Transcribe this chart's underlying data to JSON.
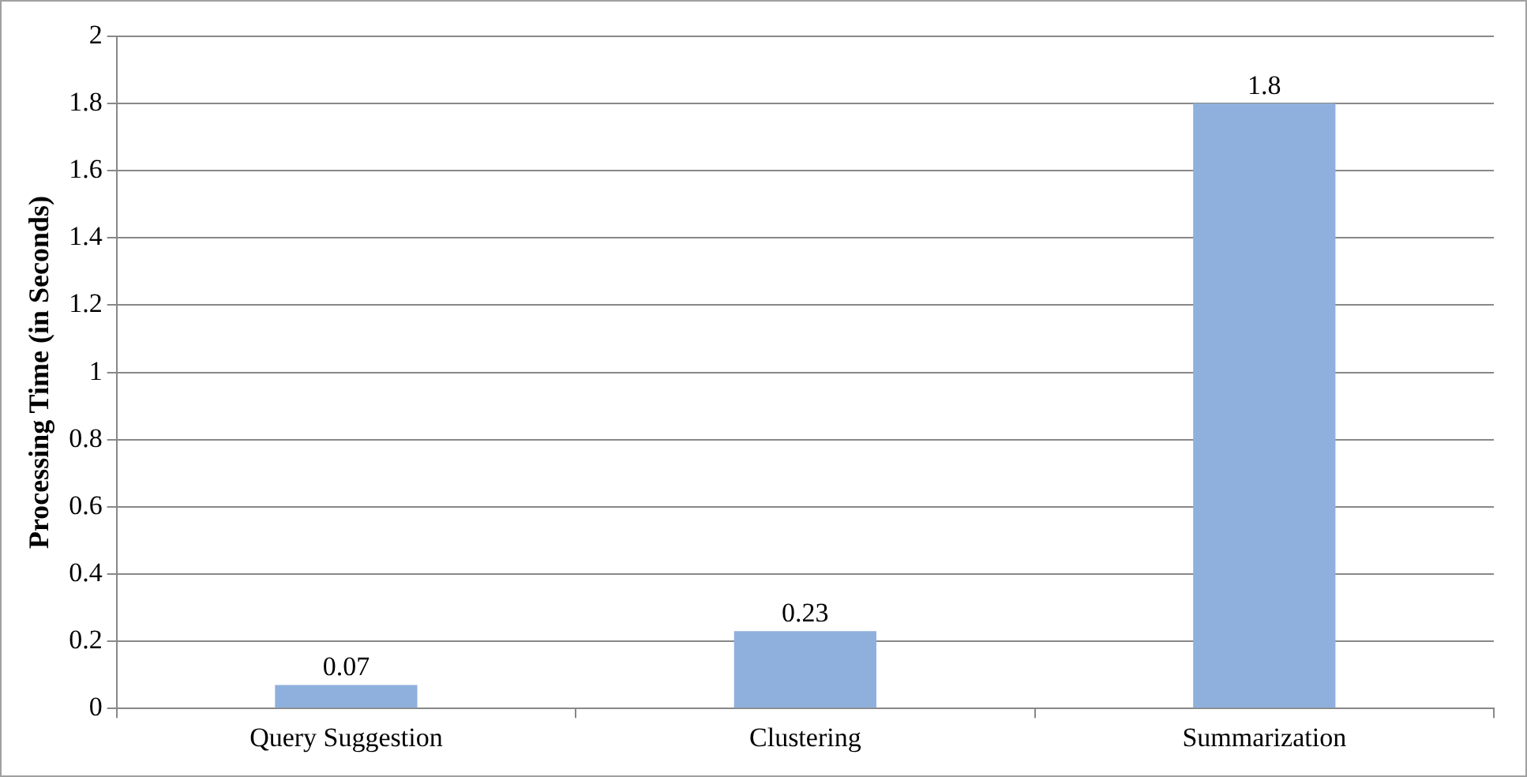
{
  "chart_data": {
    "type": "bar",
    "ylabel": "Processing Time (in Seconds)",
    "categories": [
      "Query Suggestion",
      "Clustering",
      "Summarization"
    ],
    "values": [
      0.07,
      0.23,
      1.8
    ],
    "color": "#8fb0dc",
    "ylim": [
      0,
      2
    ],
    "yticks": [
      0,
      0.2,
      0.4,
      0.6,
      0.8,
      1,
      1.2,
      1.4,
      1.6,
      1.8,
      2
    ],
    "grid": "y",
    "data_labels": true
  }
}
